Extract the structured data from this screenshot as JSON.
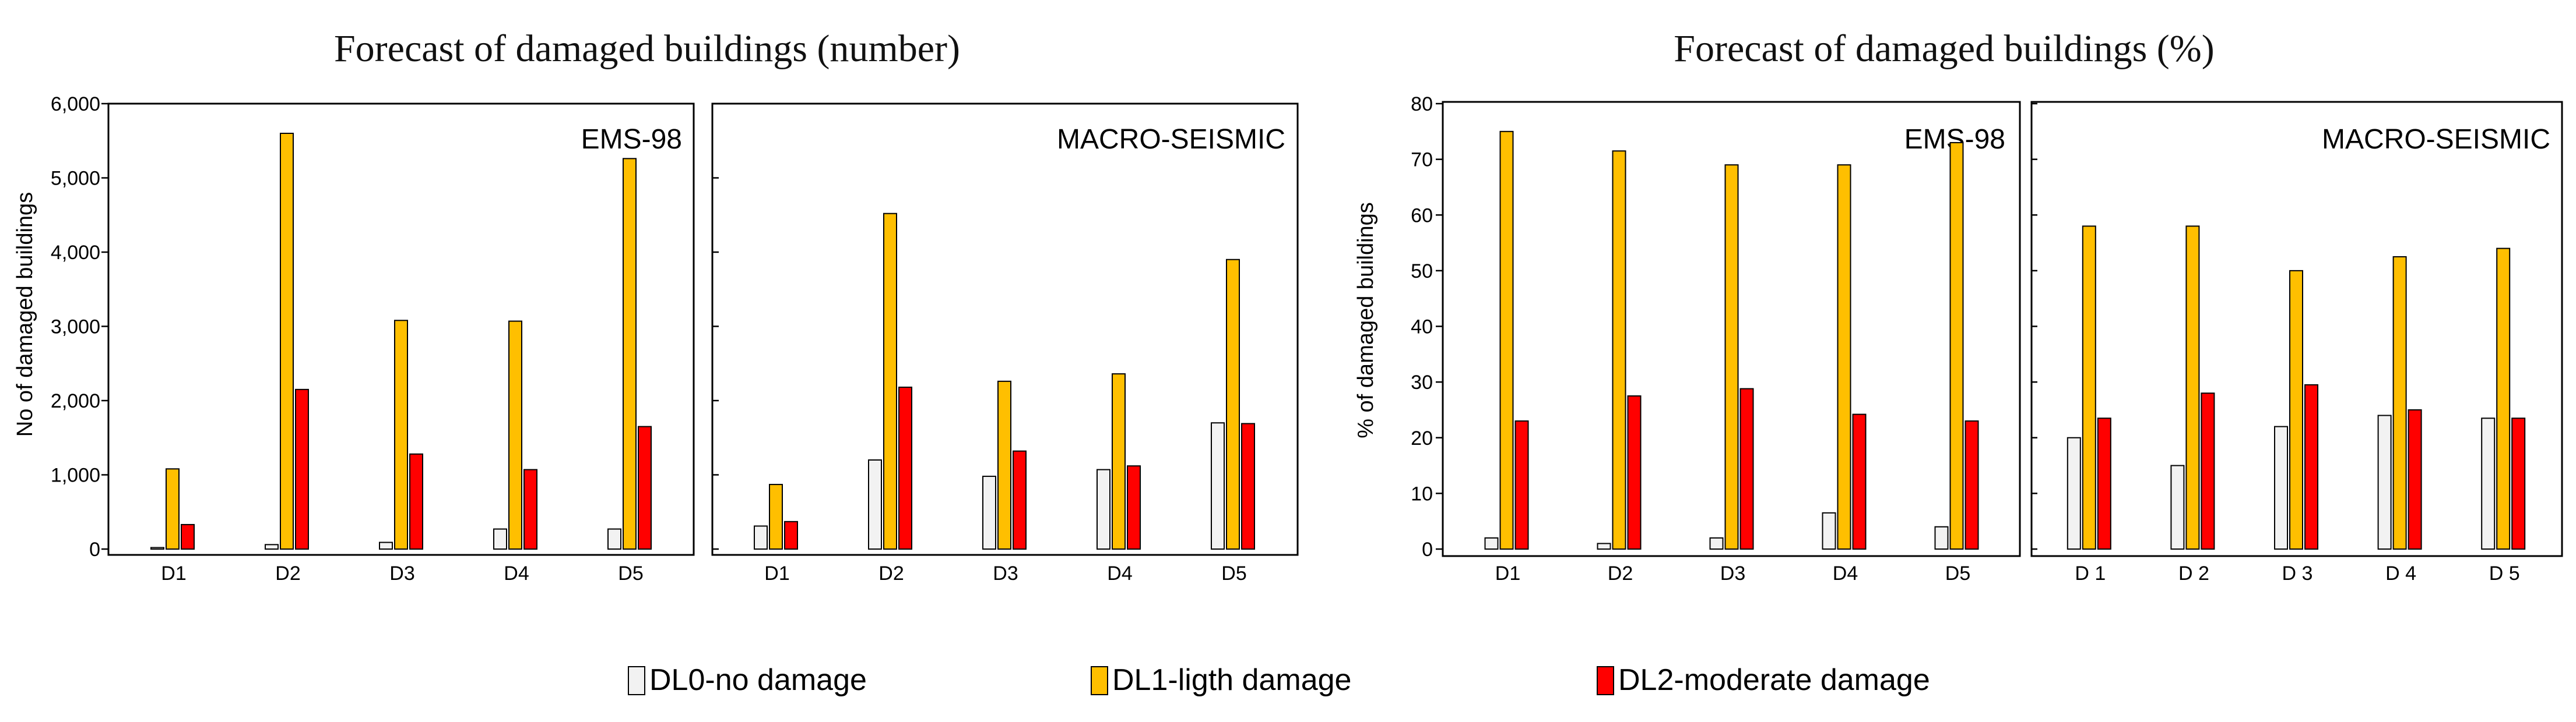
{
  "figure": {
    "legend": [
      {
        "label": "DL0-no damage",
        "color": "#f2f2f2"
      },
      {
        "label": "DL1-ligth damage",
        "color": "#ffbf00"
      },
      {
        "label": "DL2-moderate damage",
        "color": "#ff0000"
      }
    ]
  },
  "chart_data": [
    {
      "type": "bar",
      "title": "Forecast of damaged buildings (number)",
      "ylabel": "No of damaged buildings",
      "ylim": [
        0,
        6000
      ],
      "yticks": [
        0,
        1000,
        2000,
        3000,
        4000,
        5000,
        6000
      ],
      "ytick_labels": [
        "0",
        "1,000",
        "2,000",
        "3,000",
        "4,000",
        "5,000",
        "6,000"
      ],
      "panels": [
        {
          "label": "EMS-98",
          "categories": [
            "D1",
            "D2",
            "D3",
            "D4",
            "D5"
          ],
          "series": [
            {
              "name": "DL0-no damage",
              "values": [
                20,
                60,
                90,
                270,
                270
              ]
            },
            {
              "name": "DL1-ligth damage",
              "values": [
                1080,
                5600,
                3080,
                3070,
                5260
              ]
            },
            {
              "name": "DL2-moderate damage",
              "values": [
                330,
                2150,
                1280,
                1070,
                1650
              ]
            }
          ]
        },
        {
          "label": "MACRO-SEISMIC",
          "categories": [
            "D1",
            "D2",
            "D3",
            "D4",
            "D5"
          ],
          "series": [
            {
              "name": "DL0-no damage",
              "values": [
                310,
                1200,
                980,
                1070,
                1700
              ]
            },
            {
              "name": "DL1-ligth damage",
              "values": [
                870,
                4520,
                2260,
                2360,
                3900
              ]
            },
            {
              "name": "DL2-moderate damage",
              "values": [
                370,
                2180,
                1320,
                1120,
                1690
              ]
            }
          ]
        }
      ]
    },
    {
      "type": "bar",
      "title": "Forecast of damaged buildings (%)",
      "ylabel": "% of damaged buildings",
      "ylim": [
        0,
        80
      ],
      "yticks": [
        0,
        10,
        20,
        30,
        40,
        50,
        60,
        70,
        80
      ],
      "ytick_labels": [
        "0",
        "10",
        "20",
        "30",
        "40",
        "50",
        "60",
        "70",
        "80"
      ],
      "panels": [
        {
          "label": "EMS-98",
          "categories": [
            "D1",
            "D2",
            "D3",
            "D4",
            "D5"
          ],
          "series": [
            {
              "name": "DL0-no damage",
              "values": [
                2,
                1,
                2,
                6.5,
                4
              ]
            },
            {
              "name": "DL1-ligth damage",
              "values": [
                75,
                71.5,
                69,
                69,
                73
              ]
            },
            {
              "name": "DL2-moderate damage",
              "values": [
                23,
                27.5,
                28.8,
                24.2,
                23
              ]
            }
          ]
        },
        {
          "label": "MACRO-SEISMIC",
          "categories": [
            "D 1",
            "D 2",
            "D 3",
            "D 4",
            "D 5"
          ],
          "series": [
            {
              "name": "DL0-no damage",
              "values": [
                20,
                15,
                22,
                24,
                23.5
              ]
            },
            {
              "name": "DL1-ligth damage",
              "values": [
                58,
                58,
                50,
                52.5,
                54
              ]
            },
            {
              "name": "DL2-moderate damage",
              "values": [
                23.5,
                28,
                29.5,
                25,
                23.5
              ]
            }
          ]
        }
      ]
    }
  ]
}
